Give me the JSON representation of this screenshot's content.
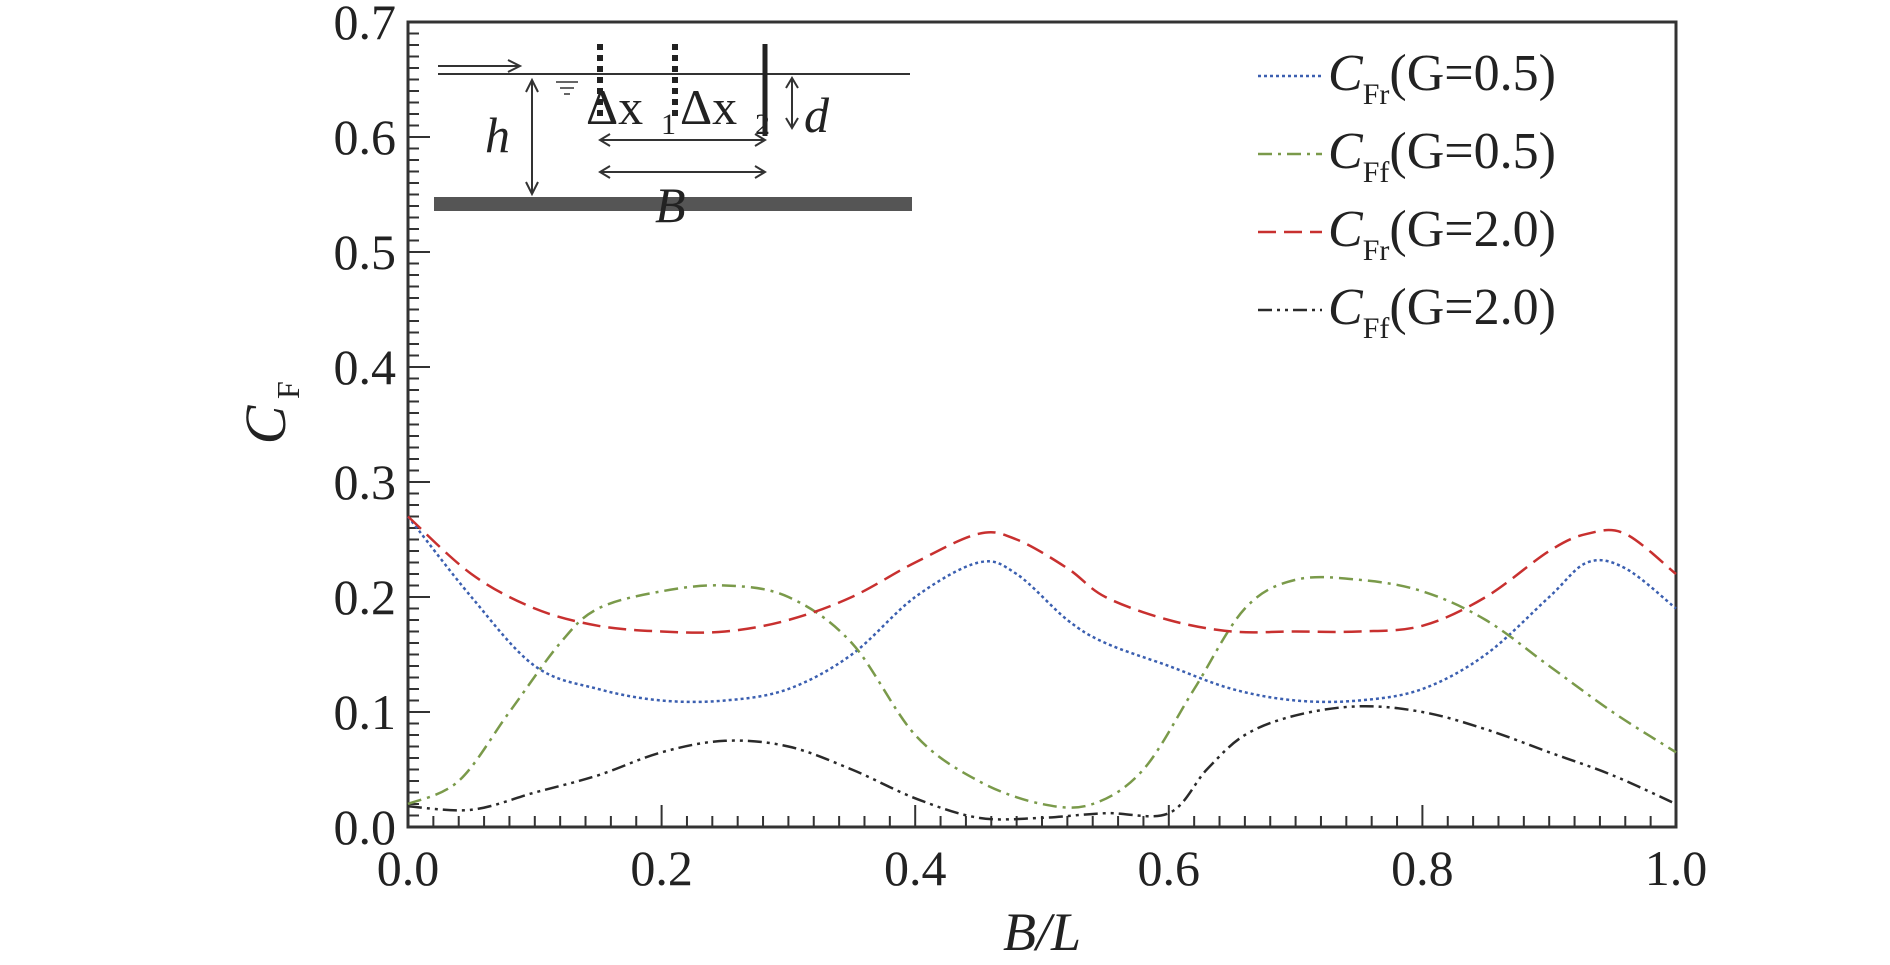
{
  "chart_data": {
    "type": "line",
    "title": "",
    "xlabel": "B/L",
    "ylabel": "C_F",
    "xlim": [
      0.0,
      1.0
    ],
    "ylim": [
      0.0,
      0.7
    ],
    "x_ticks": [
      "0.0",
      "0.2",
      "0.4",
      "0.6",
      "0.8",
      "1.0"
    ],
    "y_ticks": [
      "0.0",
      "0.1",
      "0.2",
      "0.3",
      "0.4",
      "0.5",
      "0.6",
      "0.7"
    ],
    "grid": false,
    "legend_position": "top-right",
    "series": [
      {
        "name": "C_Fr (G=0.5)",
        "color": "#3b5fb0",
        "dash": "dotted",
        "x": [
          0.0,
          0.05,
          0.1,
          0.15,
          0.2,
          0.25,
          0.3,
          0.35,
          0.4,
          0.45,
          0.48,
          0.52,
          0.55,
          0.6,
          0.65,
          0.7,
          0.75,
          0.8,
          0.85,
          0.9,
          0.93,
          0.96,
          1.0
        ],
        "y": [
          0.27,
          0.2,
          0.14,
          0.12,
          0.11,
          0.11,
          0.12,
          0.15,
          0.2,
          0.23,
          0.22,
          0.18,
          0.16,
          0.14,
          0.12,
          0.11,
          0.11,
          0.12,
          0.15,
          0.2,
          0.23,
          0.225,
          0.19
        ]
      },
      {
        "name": "C_Ff (G=0.5)",
        "color": "#7a9a4a",
        "dash": "dash-dot",
        "x": [
          0.0,
          0.04,
          0.08,
          0.12,
          0.15,
          0.2,
          0.25,
          0.3,
          0.35,
          0.4,
          0.45,
          0.5,
          0.54,
          0.58,
          0.62,
          0.66,
          0.7,
          0.75,
          0.8,
          0.85,
          0.9,
          0.95,
          1.0
        ],
        "y": [
          0.02,
          0.04,
          0.1,
          0.16,
          0.19,
          0.205,
          0.21,
          0.2,
          0.16,
          0.08,
          0.04,
          0.02,
          0.02,
          0.05,
          0.12,
          0.19,
          0.215,
          0.215,
          0.205,
          0.18,
          0.14,
          0.1,
          0.065
        ]
      },
      {
        "name": "C_Fr (G=2.0)",
        "color": "#c8302f",
        "dash": "dashed",
        "x": [
          0.0,
          0.05,
          0.1,
          0.15,
          0.2,
          0.25,
          0.3,
          0.35,
          0.4,
          0.45,
          0.48,
          0.52,
          0.55,
          0.6,
          0.65,
          0.7,
          0.75,
          0.8,
          0.85,
          0.9,
          0.93,
          0.96,
          1.0
        ],
        "y": [
          0.27,
          0.22,
          0.19,
          0.175,
          0.17,
          0.17,
          0.18,
          0.2,
          0.23,
          0.255,
          0.25,
          0.225,
          0.2,
          0.18,
          0.17,
          0.17,
          0.17,
          0.175,
          0.2,
          0.24,
          0.255,
          0.255,
          0.22
        ]
      },
      {
        "name": "C_Ff (G=2.0)",
        "color": "#2a2a2a",
        "dash": "dash-dot-dot",
        "x": [
          0.0,
          0.05,
          0.1,
          0.15,
          0.2,
          0.25,
          0.3,
          0.35,
          0.4,
          0.45,
          0.5,
          0.55,
          0.6,
          0.63,
          0.66,
          0.7,
          0.75,
          0.8,
          0.85,
          0.9,
          0.95,
          1.0
        ],
        "y": [
          0.018,
          0.015,
          0.03,
          0.045,
          0.065,
          0.075,
          0.07,
          0.05,
          0.025,
          0.008,
          0.008,
          0.012,
          0.012,
          0.05,
          0.08,
          0.097,
          0.105,
          0.1,
          0.085,
          0.065,
          0.045,
          0.02
        ]
      }
    ],
    "legend": [
      {
        "symbol": "C",
        "subscript": "Fr",
        "params": "(G=0.5)"
      },
      {
        "symbol": "C",
        "subscript": "Ff",
        "params": "(G=0.5)"
      },
      {
        "symbol": "C",
        "subscript": "Fr",
        "params": "(G=2.0)"
      },
      {
        "symbol": "C",
        "subscript": "Ff",
        "params": "(G=2.0)"
      }
    ],
    "inset": {
      "labels": {
        "h": "h",
        "d": "d",
        "B": "B",
        "dx1": "Δx",
        "dx1_sub": "1",
        "dx2": "Δx",
        "dx2_sub": "2"
      }
    }
  }
}
